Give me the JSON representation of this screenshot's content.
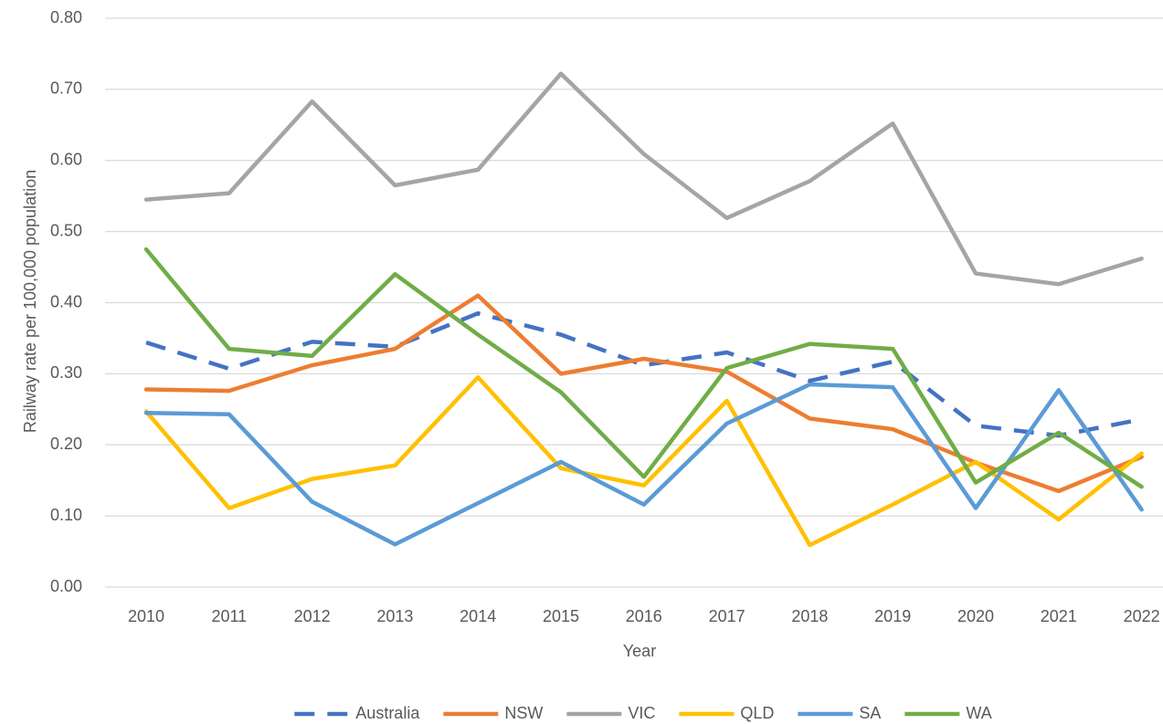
{
  "chart_data": {
    "type": "line",
    "x_label": "Year",
    "y_label": "Railway rate per 100,000 population",
    "categories": [
      "2010",
      "2011",
      "2012",
      "2013",
      "2014",
      "2015",
      "2016",
      "2017",
      "2018",
      "2019",
      "2020",
      "2021",
      "2022"
    ],
    "series": [
      {
        "name": "Australia",
        "color": "#4472c4",
        "dashed": true,
        "values": [
          0.344,
          0.307,
          0.345,
          0.338,
          0.385,
          0.355,
          0.312,
          0.33,
          0.29,
          0.317,
          0.227,
          0.213,
          0.236
        ]
      },
      {
        "name": "NSW",
        "color": "#ed7d31",
        "values": [
          0.278,
          0.276,
          0.312,
          0.335,
          0.41,
          0.3,
          0.321,
          0.303,
          0.237,
          0.222,
          0.175,
          0.135,
          0.183
        ]
      },
      {
        "name": "VIC",
        "color": "#a5a5a5",
        "values": [
          0.545,
          0.554,
          0.683,
          0.565,
          0.587,
          0.722,
          0.609,
          0.519,
          0.571,
          0.652,
          0.441,
          0.426,
          0.462
        ]
      },
      {
        "name": "QLD",
        "color": "#ffc000",
        "values": [
          0.247,
          0.111,
          0.152,
          0.171,
          0.295,
          0.167,
          0.143,
          0.262,
          0.059,
          0.116,
          0.176,
          0.095,
          0.188
        ]
      },
      {
        "name": "SA",
        "color": "#5b9bd5",
        "values": [
          0.245,
          0.243,
          0.12,
          0.06,
          0.118,
          0.176,
          0.116,
          0.23,
          0.285,
          0.281,
          0.111,
          0.277,
          0.109
        ]
      },
      {
        "name": "WA",
        "color": "#70ad47",
        "values": [
          0.475,
          0.335,
          0.325,
          0.44,
          0.355,
          0.274,
          0.155,
          0.308,
          0.342,
          0.335,
          0.147,
          0.217,
          0.141
        ]
      }
    ],
    "ylim": [
      0,
      0.8
    ],
    "yticks": [
      {
        "value": 0,
        "label": "0.00"
      },
      {
        "value": 0.1,
        "label": "0.10"
      },
      {
        "value": 0.2,
        "label": "0.20"
      },
      {
        "value": 0.3,
        "label": "0.30"
      },
      {
        "value": 0.4,
        "label": "0.40"
      },
      {
        "value": 0.5,
        "label": "0.50"
      },
      {
        "value": 0.6,
        "label": "0.60"
      },
      {
        "value": 0.7,
        "label": "0.70"
      },
      {
        "value": 0.8,
        "label": "0.80"
      }
    ],
    "grid": true,
    "legend": "bottom"
  }
}
